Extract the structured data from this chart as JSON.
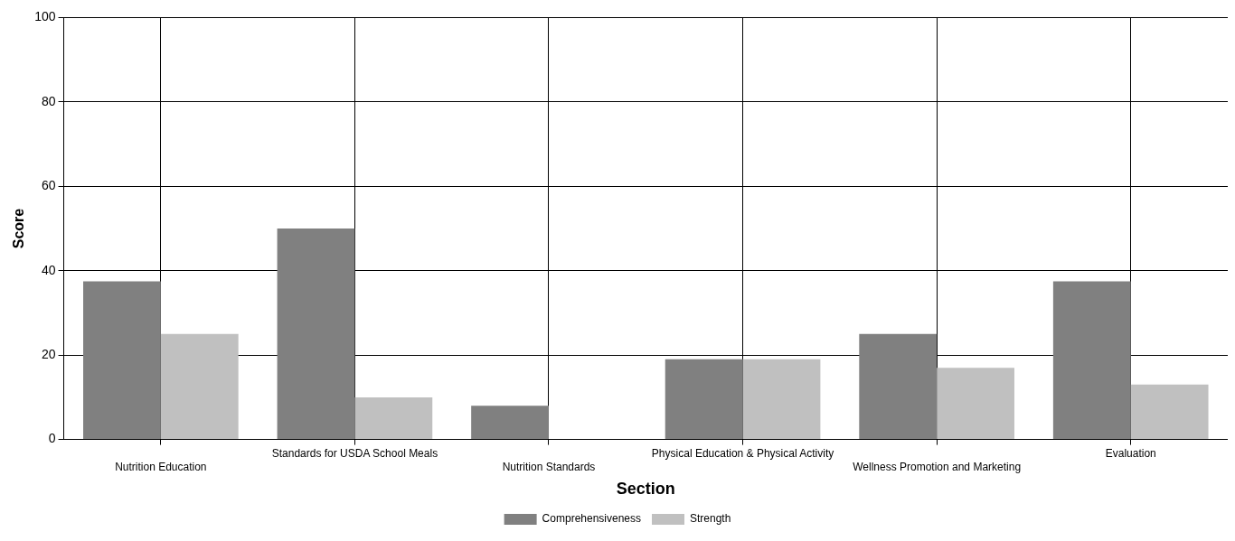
{
  "chart_data": {
    "type": "bar",
    "xlabel": "Section",
    "ylabel": "Score",
    "categories": [
      "Nutrition Education",
      "Standards for USDA School Meals",
      "Nutrition Standards",
      "Physical Education & Physical Activity",
      "Wellness Promotion and Marketing",
      "Evaluation"
    ],
    "series": [
      {
        "name": "Comprehensiveness",
        "color": "#808080",
        "values": [
          37.5,
          50,
          8,
          19,
          25,
          37.5
        ]
      },
      {
        "name": "Strength",
        "color": "#c0c0c0",
        "values": [
          25,
          10,
          0,
          19,
          17,
          13
        ]
      }
    ],
    "ylim": [
      0,
      100
    ],
    "yticks": [
      0,
      20,
      40,
      60,
      80,
      100
    ],
    "grid": true,
    "legend": "bottom"
  }
}
